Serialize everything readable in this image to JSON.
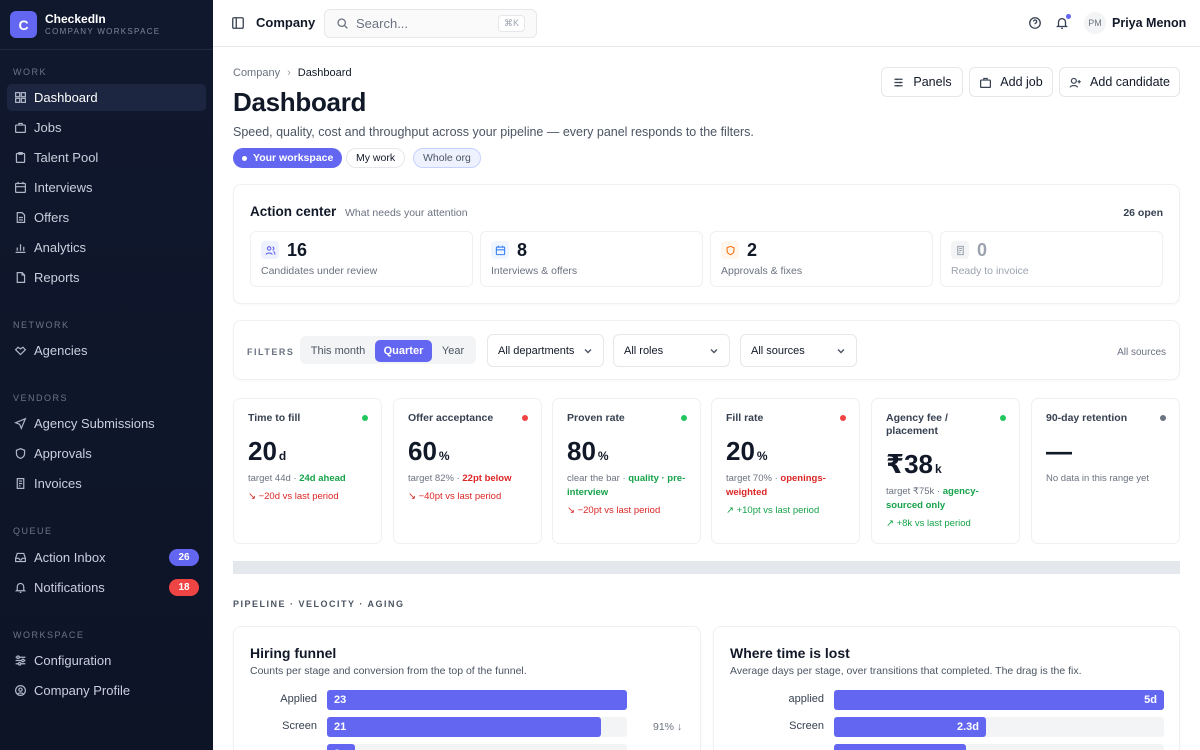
{
  "brand": {
    "logo": "C",
    "name": "CheckedIn",
    "subtitle": "COMPANY WORKSPACE"
  },
  "sidebar": {
    "sections": [
      {
        "label": "WORK",
        "items": [
          {
            "label": "Dashboard",
            "icon": "dashboard-icon",
            "active": true
          },
          {
            "label": "Jobs",
            "icon": "briefcase-icon"
          },
          {
            "label": "Talent Pool",
            "icon": "clipboard-icon"
          },
          {
            "label": "Interviews",
            "icon": "calendar-icon"
          },
          {
            "label": "Offers",
            "icon": "document-icon"
          },
          {
            "label": "Analytics",
            "icon": "bar-chart-icon"
          },
          {
            "label": "Reports",
            "icon": "file-icon"
          }
        ]
      },
      {
        "label": "NETWORK",
        "items": [
          {
            "label": "Agencies",
            "icon": "handshake-icon"
          }
        ]
      },
      {
        "label": "VENDORS",
        "items": [
          {
            "label": "Agency Submissions",
            "icon": "send-icon"
          },
          {
            "label": "Approvals",
            "icon": "shield-icon"
          },
          {
            "label": "Invoices",
            "icon": "invoice-icon"
          }
        ]
      },
      {
        "label": "QUEUE",
        "items": [
          {
            "label": "Action Inbox",
            "icon": "inbox-icon",
            "badge": "26",
            "badge_color": "#6366f1"
          },
          {
            "label": "Notifications",
            "icon": "bell-icon",
            "badge": "18",
            "badge_color": "#ef4444"
          }
        ]
      },
      {
        "label": "WORKSPACE",
        "items": [
          {
            "label": "Configuration",
            "icon": "sliders-icon"
          },
          {
            "label": "Company Profile",
            "icon": "user-circle-icon"
          }
        ]
      }
    ]
  },
  "topbar": {
    "title": "Company",
    "search_placeholder": "Search...",
    "shortcut": "⌘K",
    "user_initials": "PM",
    "user_name": "Priya Menon"
  },
  "header": {
    "breadcrumb": [
      "Company",
      "Dashboard"
    ],
    "title": "Dashboard",
    "subtitle": "Speed, quality, cost and throughput across your pipeline — every panel responds to the filters.",
    "scopes": [
      "Your workspace",
      "My work",
      "Whole org"
    ],
    "buttons": [
      "Panels",
      "Add job",
      "Add candidate"
    ]
  },
  "action_center": {
    "title": "Action center",
    "subtitle": "What needs your attention",
    "open": "26 open",
    "tiles": [
      {
        "count": "16",
        "label": "Candidates under review",
        "icon": "users-icon",
        "color": "#6366f1",
        "bg": "#eef2ff"
      },
      {
        "count": "8",
        "label": "Interviews & offers",
        "icon": "calendar-icon",
        "color": "#3b82f6",
        "bg": "#eff6ff"
      },
      {
        "count": "2",
        "label": "Approvals & fixes",
        "icon": "shield-icon",
        "color": "#f97316",
        "bg": "#fff7ed"
      },
      {
        "count": "0",
        "label": "Ready to invoice",
        "icon": "invoice-icon",
        "color": "#9ca3af",
        "bg": "#f3f4f6",
        "muted": true
      }
    ]
  },
  "filters": {
    "label": "FILTERS",
    "periods": [
      "This month",
      "Quarter",
      "Year"
    ],
    "active_period": "Quarter",
    "selects": [
      "All departments",
      "All roles",
      "All sources"
    ],
    "summary": "All sources"
  },
  "kpis": [
    {
      "label": "Time to fill",
      "value": "20",
      "unit": "d",
      "dot": "#22c55e",
      "target": "target 44d · ",
      "target_hl": "24d ahead",
      "hl_color": "#16a34a",
      "delta": "↘ −20d vs last period",
      "delta_color": "#dc2626"
    },
    {
      "label": "Offer acceptance",
      "value": "60",
      "unit": "%",
      "dot": "#ef4444",
      "target": "target 82% · ",
      "target_hl": "22pt below",
      "hl_color": "#dc2626",
      "delta": "↘ −40pt vs last period",
      "delta_color": "#dc2626"
    },
    {
      "label": "Proven rate",
      "value": "80",
      "unit": "%",
      "dot": "#22c55e",
      "target": "clear the bar · ",
      "target_hl": "quality · pre-interview",
      "hl_color": "#16a34a",
      "delta": "↘ −20pt vs last period",
      "delta_color": "#dc2626"
    },
    {
      "label": "Fill rate",
      "value": "20",
      "unit": "%",
      "dot": "#ef4444",
      "target": "target 70% · ",
      "target_hl": "openings-weighted",
      "hl_color": "#dc2626",
      "delta": "↗ +10pt vs last period",
      "delta_color": "#16a34a"
    },
    {
      "label": "Agency fee / placement",
      "value": "₹38",
      "unit": "k",
      "dot": "#22c55e",
      "target": "target ₹75k · ",
      "target_hl": "agency-sourced only",
      "hl_color": "#16a34a",
      "delta": "↗ +8k vs last period",
      "delta_color": "#16a34a"
    },
    {
      "label": "90-day retention",
      "value": "—",
      "unit": "",
      "dot": "#6b7280",
      "target": "No data in this range yet",
      "target_hl": "",
      "hl_color": "#6b7280",
      "delta": "",
      "delta_color": "#6b7280"
    }
  ],
  "section_label": "PIPELINE · VELOCITY · AGING",
  "chart_data": [
    {
      "type": "bar",
      "title": "Hiring funnel",
      "subtitle": "Counts per stage and conversion from the top of the funnel.",
      "categories": [
        "Applied",
        "Screen",
        ""
      ],
      "values": [
        23,
        21,
        2
      ],
      "value_labels": [
        "23",
        "21",
        "2"
      ],
      "conversion_labels": [
        "",
        "91% ↓",
        ""
      ],
      "xlim": [
        0,
        23
      ]
    },
    {
      "type": "bar",
      "title": "Where time is lost",
      "subtitle": "Average days per stage, over transitions that completed. The drag is the fix.",
      "categories": [
        "applied",
        "Screen",
        ""
      ],
      "values": [
        5,
        2.3,
        2
      ],
      "value_labels": [
        "5d",
        "2.3d",
        ""
      ],
      "xlim": [
        0,
        5
      ]
    }
  ]
}
